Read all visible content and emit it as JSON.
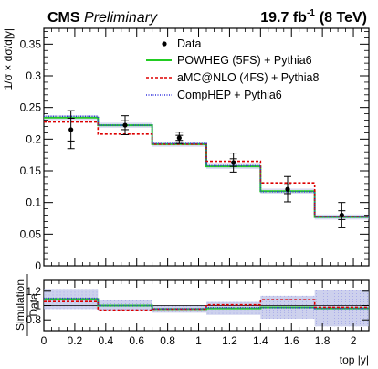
{
  "header": {
    "experiment": "CMS",
    "status": "Preliminary",
    "lumi": "19.7 fb",
    "lumi_exp": "-1",
    "energy": "(8 TeV)"
  },
  "colors": {
    "data": "#000000",
    "powheg": "#22cc22",
    "amcnlo": "#dd0000",
    "comphep": "#3333dd",
    "band": "#b8bee6"
  },
  "chart_data": [
    {
      "type": "step",
      "ylabel": "1/σ × dσ/d|y|",
      "ylim": [
        0,
        0.375
      ],
      "xlim": [
        0,
        2.1
      ],
      "bin_edges": [
        0,
        0.35,
        0.7,
        1.05,
        1.4,
        1.75,
        2.1
      ],
      "yticks": [
        0,
        0.05,
        0.1,
        0.15,
        0.2,
        0.25,
        0.3,
        0.35
      ],
      "ytick_labels": [
        "0",
        "0.05",
        "0.1",
        "0.15",
        "0.2",
        "0.25",
        "0.3",
        "0.35"
      ],
      "legend": {
        "placement": "top-right",
        "entries": [
          "Data",
          "POWHEG (5FS) + Pythia6",
          "aMC@NLO (4FS) + Pythia8",
          "CompHEP + Pythia6"
        ]
      },
      "data_points": {
        "name": "Data",
        "x": [
          0.175,
          0.525,
          0.875,
          1.225,
          1.575,
          1.925
        ],
        "y": [
          0.215,
          0.222,
          0.202,
          0.163,
          0.121,
          0.08
        ],
        "stat_err": [
          0.018,
          0.007,
          0.004,
          0.006,
          0.007,
          0.007
        ],
        "total_err": [
          0.03,
          0.015,
          0.009,
          0.015,
          0.02,
          0.02
        ]
      },
      "series": [
        {
          "name": "POWHEG (5FS) + Pythia6",
          "values": [
            0.234,
            0.222,
            0.192,
            0.157,
            0.118,
            0.077
          ]
        },
        {
          "name": "aMC@NLO (4FS) + Pythia8",
          "values": [
            0.227,
            0.208,
            0.192,
            0.165,
            0.131,
            0.078
          ]
        },
        {
          "name": "CompHEP + Pythia6",
          "values": [
            0.236,
            0.222,
            0.193,
            0.158,
            0.117,
            0.077
          ]
        }
      ]
    },
    {
      "type": "ratio-step",
      "ylabel_top": "Simulation",
      "ylabel_bottom": "Data",
      "xlabel": "top |y|",
      "ylim": [
        0.65,
        1.35
      ],
      "xlim": [
        0,
        2.1
      ],
      "bin_edges": [
        0,
        0.35,
        0.7,
        1.05,
        1.4,
        1.75,
        2.1
      ],
      "yticks": [
        0.8,
        1.0,
        1.2
      ],
      "ytick_labels": [
        "0.8",
        "1",
        "1.2"
      ],
      "xticks": [
        0,
        0.2,
        0.4,
        0.6,
        0.8,
        1.0,
        1.2,
        1.4,
        1.6,
        1.8,
        2.0
      ],
      "xtick_labels": [
        "0",
        "0.2",
        "0.4",
        "0.6",
        "0.8",
        "1",
        "1.2",
        "1.4",
        "1.6",
        "1.8",
        "2"
      ],
      "band_halfwidth": [
        0.14,
        0.07,
        0.05,
        0.09,
        0.16,
        0.25
      ],
      "series": [
        {
          "name": "POWHEG (5FS) + Pythia6",
          "values": [
            1.09,
            1.0,
            0.95,
            0.96,
            0.975,
            0.96
          ]
        },
        {
          "name": "aMC@NLO (4FS) + Pythia8",
          "values": [
            1.055,
            0.935,
            0.95,
            1.01,
            1.08,
            0.975
          ]
        },
        {
          "name": "CompHEP + Pythia6",
          "values": [
            1.1,
            1.0,
            0.955,
            0.97,
            0.97,
            0.96
          ]
        }
      ]
    }
  ]
}
